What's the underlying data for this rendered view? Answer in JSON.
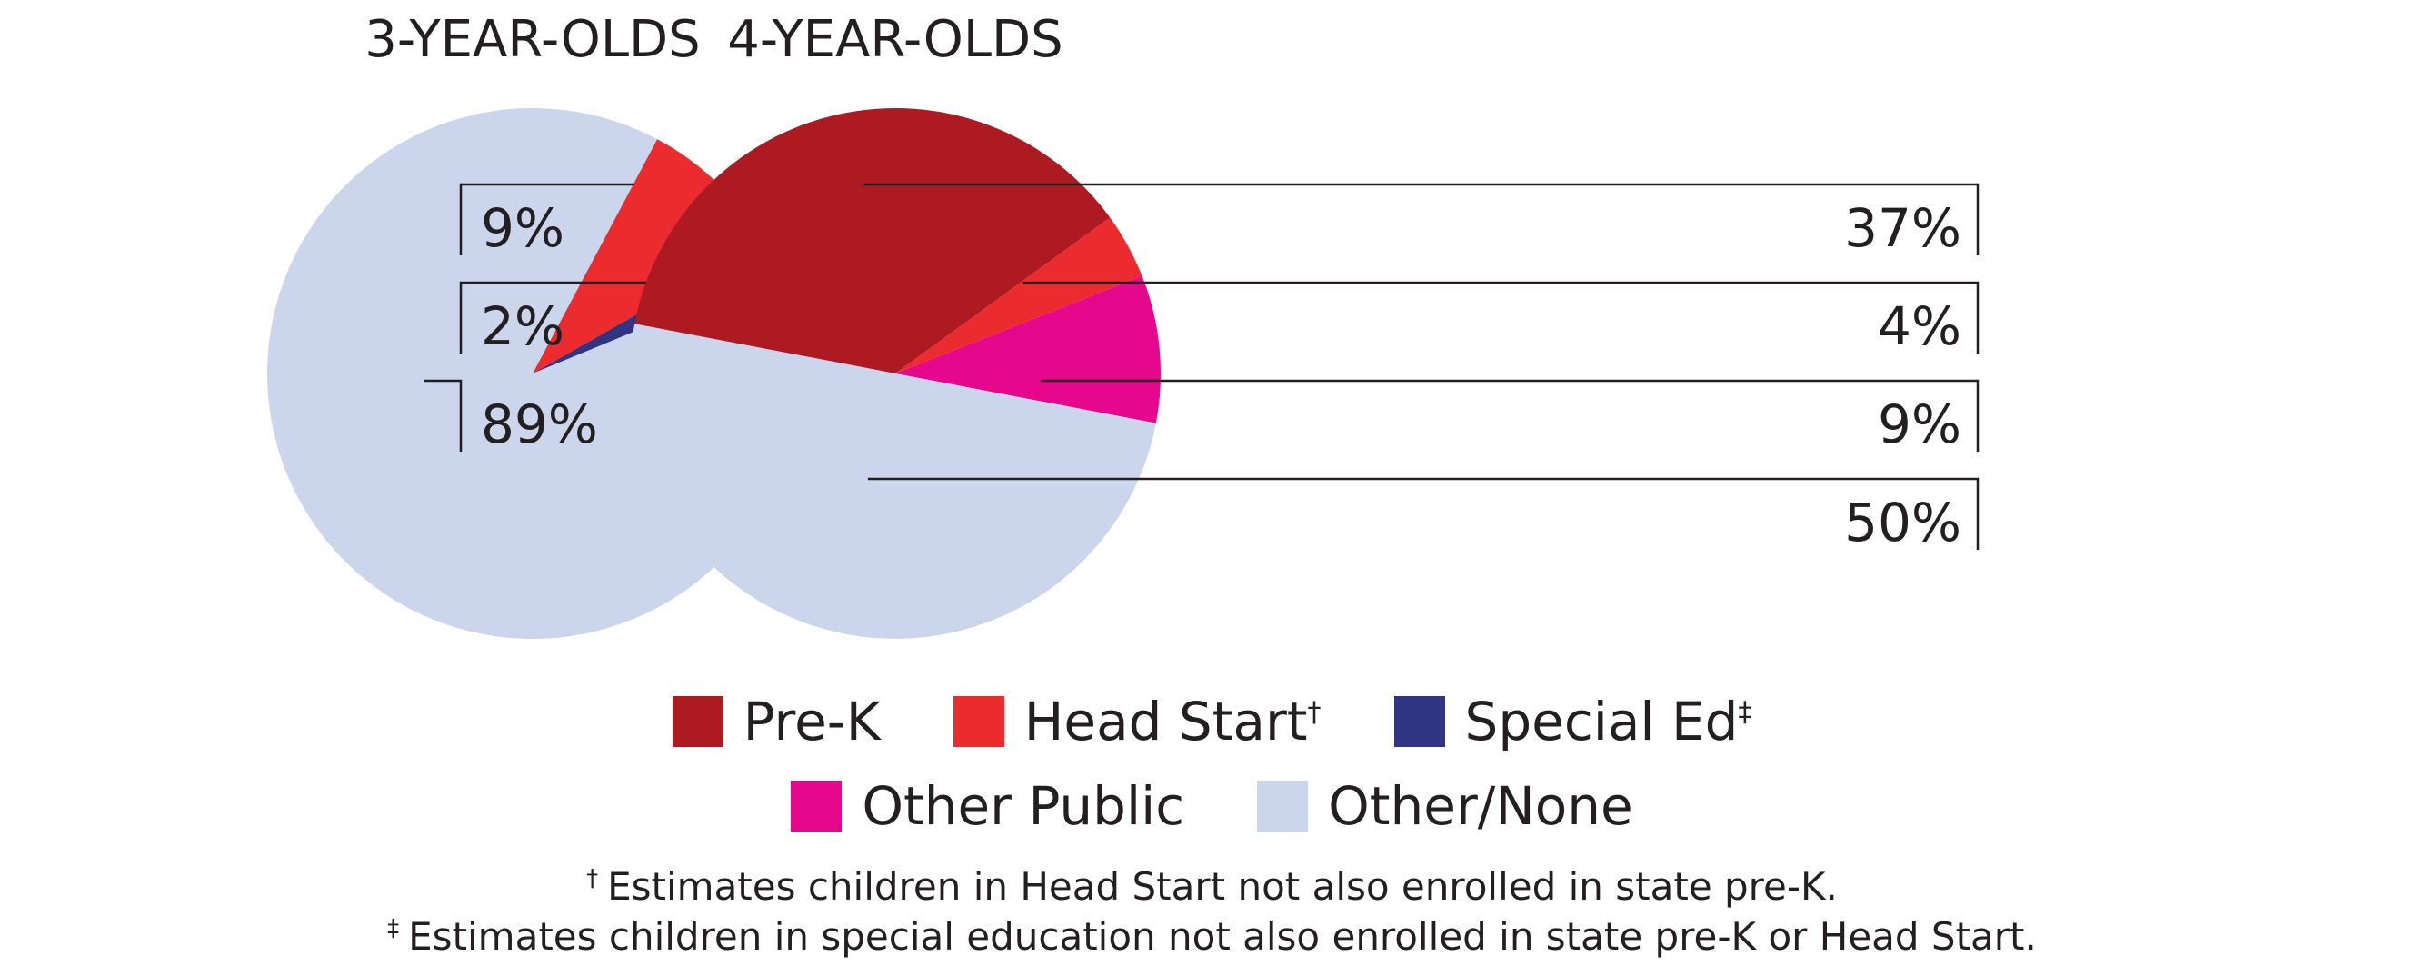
{
  "colors": {
    "prek": "#ad1a22",
    "head_start": "#ec2b2f",
    "special_ed": "#2f3582",
    "other_public": "#e6088c",
    "other_none": "#cbd5eb",
    "text": "#231f20"
  },
  "chart_data": [
    {
      "type": "pie",
      "title": "3-YEAR-OLDS",
      "slices": [
        {
          "category": "Pre-K",
          "value": 0,
          "label": ""
        },
        {
          "category": "Head Start",
          "value": 9,
          "label": "9%"
        },
        {
          "category": "Special Ed",
          "value": 2,
          "label": "2%"
        },
        {
          "category": "Other Public",
          "value": 0,
          "label": ""
        },
        {
          "category": "Other/None",
          "value": 89,
          "label": "89%"
        }
      ],
      "label_side": "left"
    },
    {
      "type": "pie",
      "title": "4-YEAR-OLDS",
      "slices": [
        {
          "category": "Pre-K",
          "value": 37,
          "label": "37%"
        },
        {
          "category": "Head Start",
          "value": 4,
          "label": "4%"
        },
        {
          "category": "Special Ed",
          "value": 0,
          "label": ""
        },
        {
          "category": "Other Public",
          "value": 9,
          "label": "9%"
        },
        {
          "category": "Other/None",
          "value": 50,
          "label": "50%"
        }
      ],
      "label_side": "right"
    }
  ],
  "legend": [
    {
      "name": "Pre-K",
      "sup": "",
      "color_key": "prek"
    },
    {
      "name": "Head Start",
      "sup": "†",
      "color_key": "head_start"
    },
    {
      "name": "Special Ed",
      "sup": "‡",
      "color_key": "special_ed"
    },
    {
      "name": "Other Public",
      "sup": "",
      "color_key": "other_public"
    },
    {
      "name": "Other/None",
      "sup": "",
      "color_key": "other_none"
    }
  ],
  "footnotes": [
    {
      "mark": "†",
      "text": "Estimates children in Head Start not also enrolled in state pre-K."
    },
    {
      "mark": "‡",
      "text": "Estimates children in special education not also enrolled in state pre-K or Head Start."
    }
  ]
}
